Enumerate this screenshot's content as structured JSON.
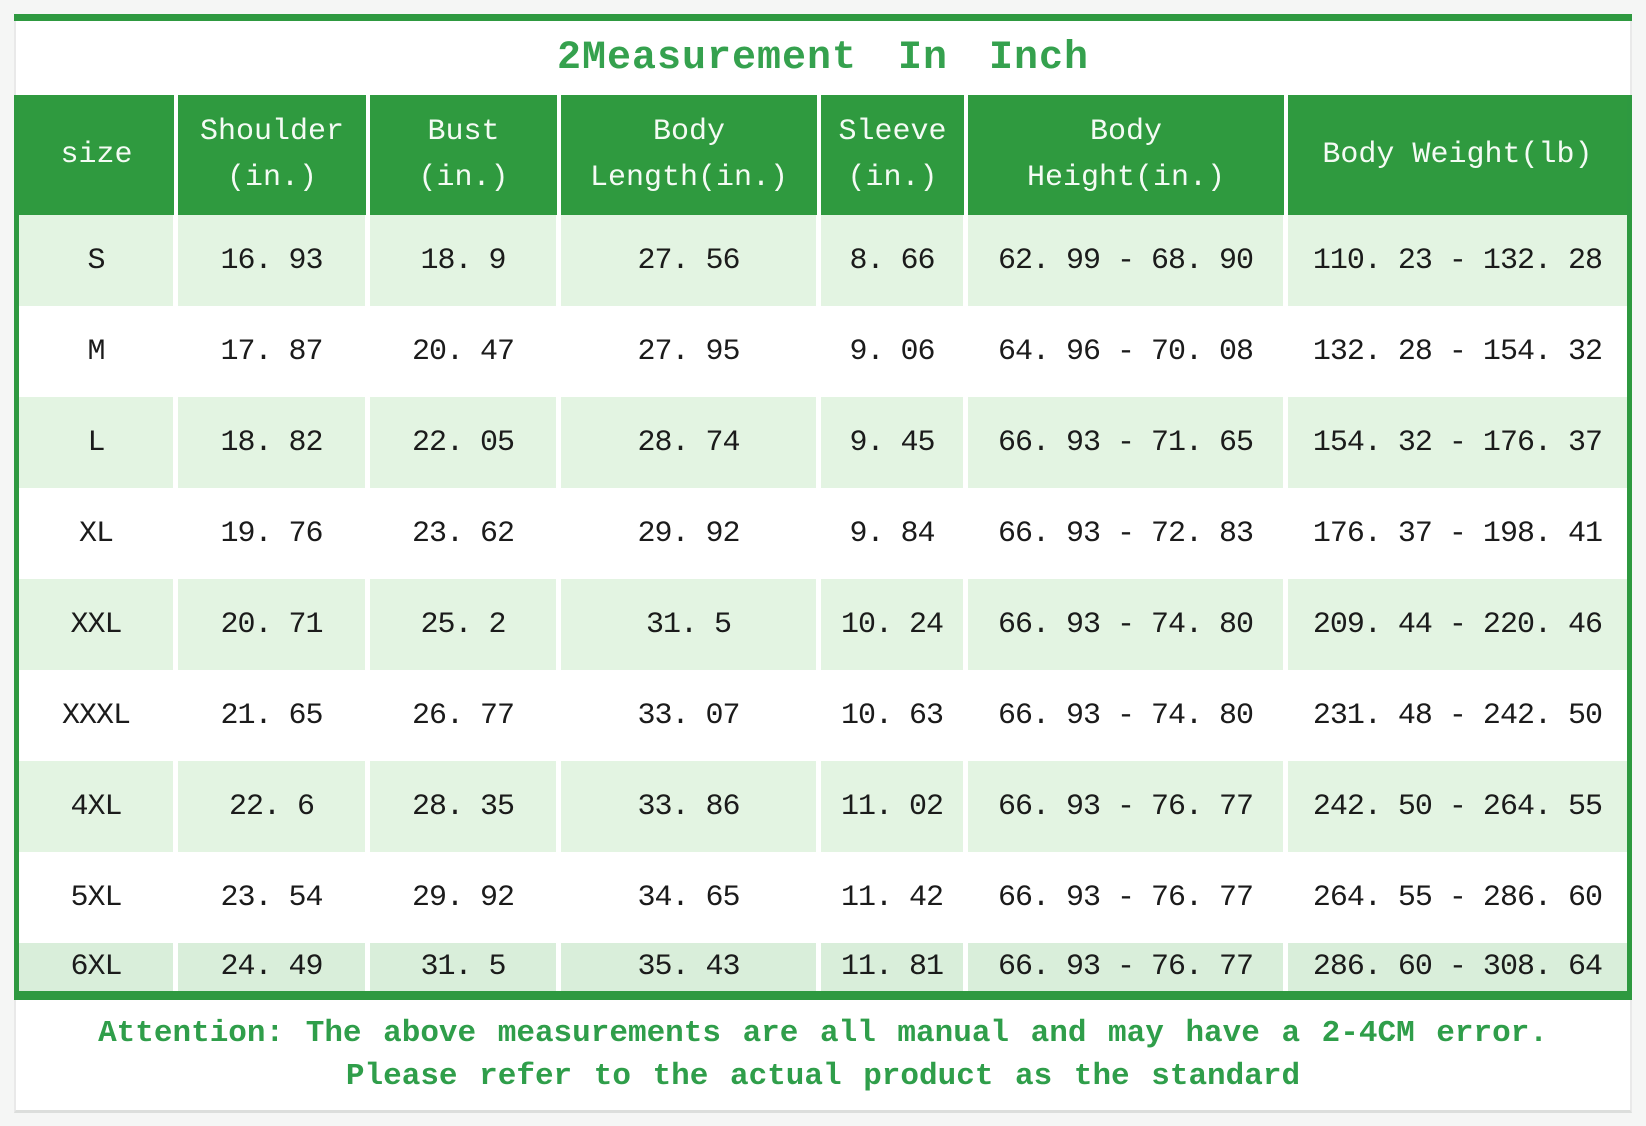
{
  "colors": {
    "accent_green": "#2e9940",
    "header_green": "#2f9a3f",
    "light_row_green": "#e3f4e2",
    "last_row_green": "#d9eeda",
    "text_green": "#35a14e"
  },
  "chart_data": {
    "type": "table",
    "title": "2Measurement In Inch",
    "columns": [
      {
        "line1": "size",
        "line2": ""
      },
      {
        "line1": "Shoulder",
        "line2": "(in.)"
      },
      {
        "line1": "Bust",
        "line2": "(in.)"
      },
      {
        "line1": "Body",
        "line2": "Length(in.)"
      },
      {
        "line1": "Sleeve",
        "line2": "(in.)"
      },
      {
        "line1": "Body",
        "line2": "Height(in.)"
      },
      {
        "line1": "Body Weight(lb)",
        "line2": ""
      }
    ],
    "rows": [
      [
        "S",
        "16. 93",
        "18. 9",
        "27. 56",
        "8. 66",
        "62. 99 - 68. 90",
        "110. 23 - 132. 28"
      ],
      [
        "M",
        "17. 87",
        "20. 47",
        "27. 95",
        "9. 06",
        "64. 96 - 70. 08",
        "132. 28 - 154. 32"
      ],
      [
        "L",
        "18. 82",
        "22. 05",
        "28. 74",
        "9. 45",
        "66. 93 - 71. 65",
        "154. 32 - 176. 37"
      ],
      [
        "XL",
        "19. 76",
        "23. 62",
        "29. 92",
        "9. 84",
        "66. 93 - 72. 83",
        "176. 37 - 198. 41"
      ],
      [
        "XXL",
        "20. 71",
        "25. 2",
        "31. 5",
        "10. 24",
        "66. 93 - 74. 80",
        "209. 44 - 220. 46"
      ],
      [
        "XXXL",
        "21. 65",
        "26. 77",
        "33. 07",
        "10. 63",
        "66. 93 - 74. 80",
        "231. 48 - 242. 50"
      ],
      [
        "4XL",
        "22. 6",
        "28. 35",
        "33. 86",
        "11. 02",
        "66. 93 - 76. 77",
        "242. 50 - 264. 55"
      ],
      [
        "5XL",
        "23. 54",
        "29. 92",
        "34. 65",
        "11. 42",
        "66. 93 - 76. 77",
        "264. 55 - 286. 60"
      ],
      [
        "6XL",
        "24. 49",
        "31. 5",
        "35. 43",
        "11. 81",
        "66. 93 - 76. 77",
        "286. 60 - 308. 64"
      ]
    ],
    "notes": {
      "line1": "Attention: The above measurements are all manual and may have a 2-4CM error.",
      "line2": "Please refer to the actual product as the standard"
    }
  }
}
